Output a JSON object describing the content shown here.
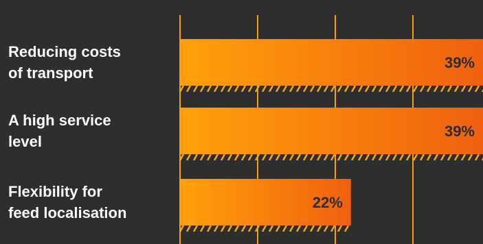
{
  "chart_data": {
    "type": "bar",
    "orientation": "horizontal",
    "categories": [
      "Reducing costs of transport",
      "A high service level",
      "Flexibility for feed localisation"
    ],
    "category_lines": [
      [
        "Reducing costs",
        "of transport"
      ],
      [
        "A high service",
        "level"
      ],
      [
        "Flexibility for",
        "feed localisation"
      ]
    ],
    "values": [
      39,
      39,
      22
    ],
    "value_labels": [
      "39%",
      "39%",
      "22%"
    ],
    "xlim": [
      0,
      39
    ],
    "grid": true,
    "legend": "none",
    "colors": {
      "background": "#2e2e2e",
      "grid": "#f2a20c",
      "bar_start": "#ffa10a",
      "bar_end": "#f0600f",
      "hatch": "#f5a70b",
      "value_text": "#2d2d2d",
      "category_text": "#ffffff"
    }
  }
}
